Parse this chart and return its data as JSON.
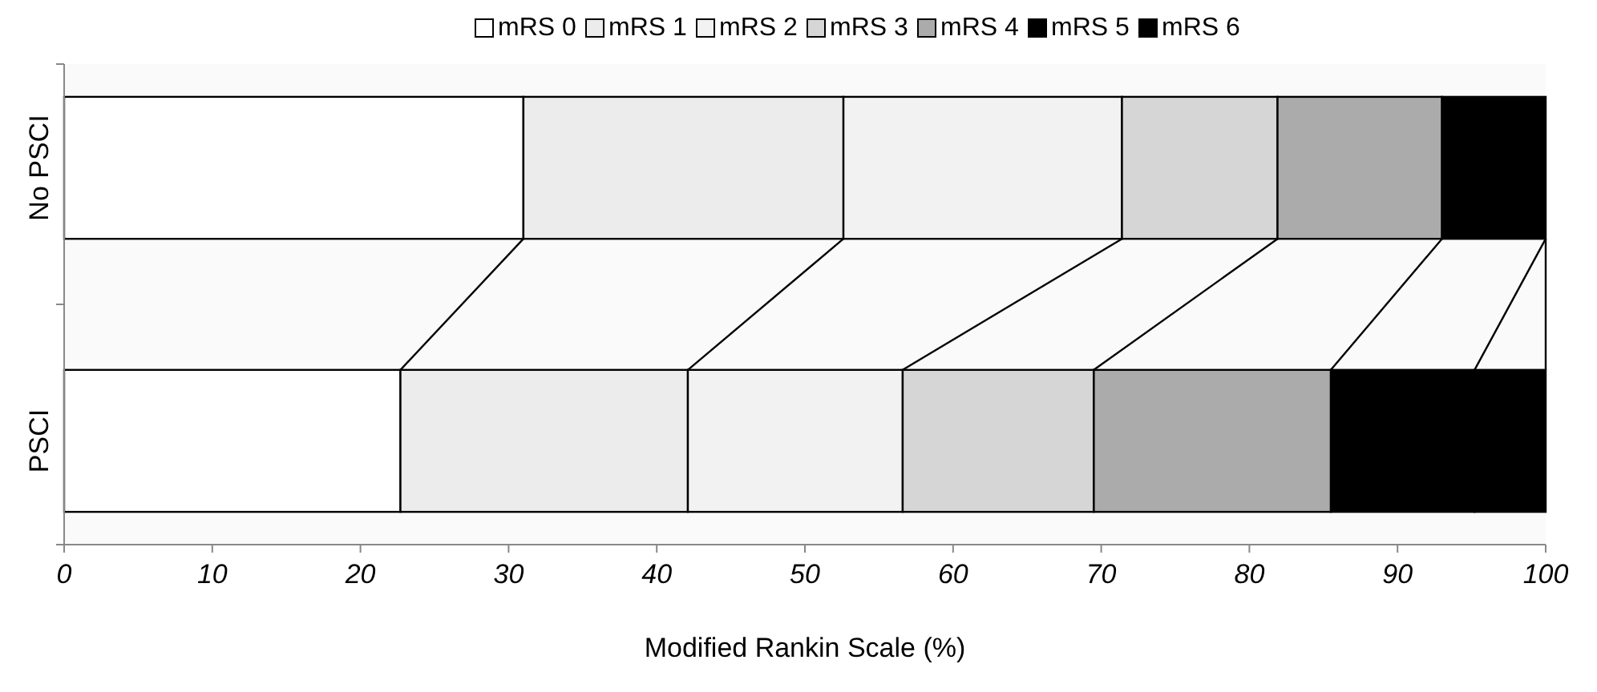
{
  "chart_data": {
    "type": "bar",
    "orientation": "horizontal",
    "stacked": true,
    "xlabel": "Modified Rankin Scale (%)",
    "categories": [
      "No PSCI",
      "PSCI"
    ],
    "series": [
      {
        "name": "mRS 0",
        "color": "#ffffff",
        "values": [
          31.0,
          22.7
        ]
      },
      {
        "name": "mRS 1",
        "color": "#ececec",
        "values": [
          21.6,
          19.4
        ]
      },
      {
        "name": "mRS 2",
        "color": "#f2f2f2",
        "values": [
          18.8,
          14.5
        ]
      },
      {
        "name": "mRS 3",
        "color": "#d6d6d6",
        "values": [
          10.5,
          12.9
        ]
      },
      {
        "name": "mRS 4",
        "color": "#ababab",
        "values": [
          11.1,
          16.0
        ]
      },
      {
        "name": "mRS 5",
        "color": "#000000",
        "values": [
          7.0,
          9.7
        ]
      },
      {
        "name": "mRS 6",
        "color": "#000000",
        "values": [
          0,
          4.8
        ]
      }
    ],
    "xlim": [
      0,
      100
    ],
    "xticks": [
      0,
      10,
      20,
      30,
      40,
      50,
      60,
      70,
      80,
      90,
      100
    ],
    "legend": "top",
    "grid": false
  }
}
